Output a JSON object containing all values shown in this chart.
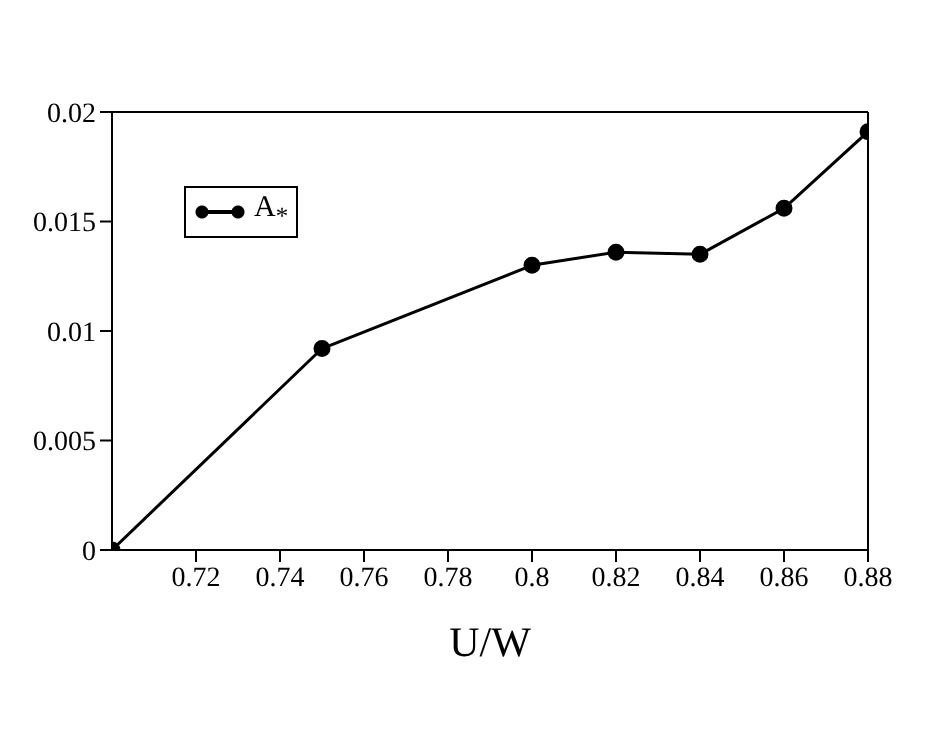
{
  "chart_data": {
    "type": "line",
    "xlabel": "U/W",
    "x": [
      0.7,
      0.75,
      0.8,
      0.82,
      0.84,
      0.86,
      0.88
    ],
    "series": [
      {
        "name": "A$_{*}$",
        "color": "#000000",
        "values": [
          0,
          0.0092,
          0.013,
          0.0136,
          0.0135,
          0.0156,
          0.0191
        ]
      }
    ],
    "xlim": [
      0.7,
      0.88
    ],
    "xticks": [
      0.72,
      0.74,
      0.76,
      0.78,
      0.8,
      0.82,
      0.84,
      0.86,
      0.88
    ],
    "ylim": [
      0,
      0.02
    ],
    "yticks": [
      0,
      0.005,
      0.01,
      0.015,
      0.02
    ],
    "grid": false,
    "legend": "top left",
    "marker": "circle",
    "line_style": "solid"
  }
}
